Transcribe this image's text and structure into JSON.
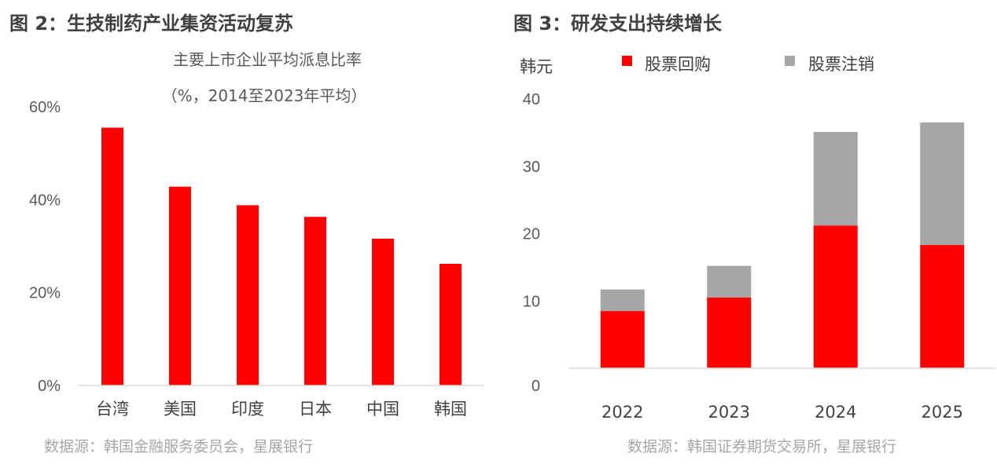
{
  "colors": {
    "red": "#ff0000",
    "grey": "#a6a6a6",
    "text": "#404040",
    "tick": "#595959",
    "source": "#a6a6a6"
  },
  "chart_data": [
    {
      "type": "bar",
      "figure_label": "图 2：生技制药产业集资活动复苏",
      "title": "主要上市企业平均派息比率",
      "subtitle": "（%，2014至2023年平均）",
      "categories": [
        "台湾",
        "美国",
        "印度",
        "日本",
        "中国",
        "韩国"
      ],
      "values": [
        55.5,
        42.8,
        38.8,
        36.3,
        31.6,
        26.2
      ],
      "ylim": [
        0,
        60
      ],
      "yticks": [
        "0%",
        "20%",
        "40%",
        "60%"
      ],
      "ytick_values": [
        0,
        20,
        40,
        60
      ],
      "source": "数据源：韩国金融服务委员会，星展银行",
      "grid": false,
      "color": "#ff0000"
    },
    {
      "type": "bar",
      "stacked": true,
      "figure_label": "图 3：研发支出持续增长",
      "ylabel": "韩元",
      "categories": [
        "2022",
        "2023",
        "2024",
        "2025"
      ],
      "series": [
        {
          "name": "股票回购",
          "values": [
            8.5,
            10.5,
            21.2,
            18.3
          ],
          "color": "#ff0000"
        },
        {
          "name": "股票注销",
          "values": [
            3.2,
            4.7,
            13.9,
            18.2
          ],
          "color": "#a6a6a6"
        }
      ],
      "ylim": [
        0,
        40
      ],
      "yticks": [
        "0",
        "10",
        "20",
        "30",
        "40"
      ],
      "ytick_values": [
        0,
        10,
        20,
        30,
        40
      ],
      "legend_position": "top",
      "source": "数据源：韩国证券期货交易所，星展银行",
      "grid": false
    }
  ]
}
